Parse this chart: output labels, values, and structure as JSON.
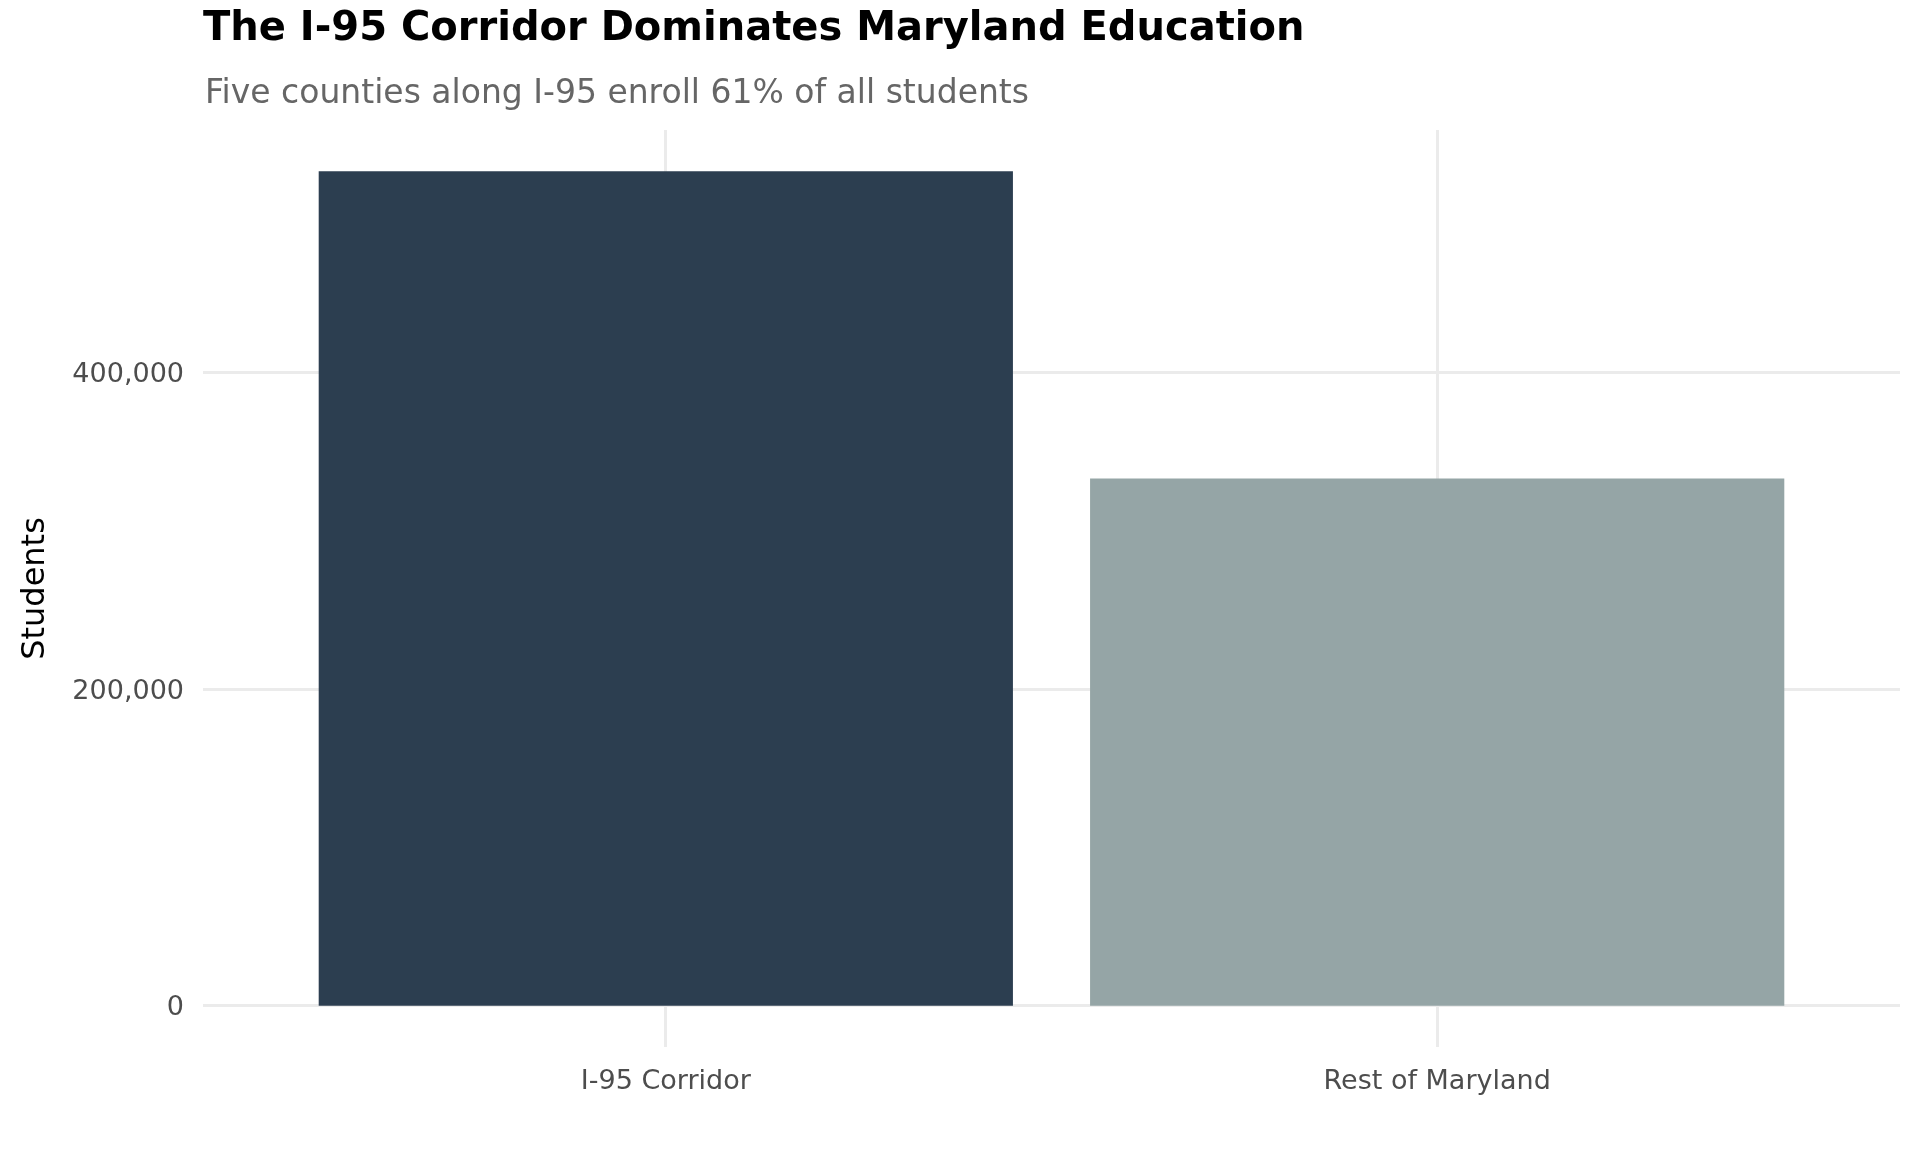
{
  "chart_data": {
    "type": "bar",
    "title": "The I-95 Corridor Dominates Maryland Education",
    "subtitle": "Five counties along I-95 enroll 61% of all students",
    "ylabel": "Students",
    "categories": [
      "I-95 Corridor",
      "Rest of Maryland"
    ],
    "values": [
      527000,
      333000
    ],
    "colors": [
      "#2c3e50",
      "#95a5a6"
    ],
    "ylim": [
      -26000,
      553000
    ],
    "yticks": [
      0,
      {
        "value": 200000,
        "label": "200,000"
      },
      {
        "value": 400000,
        "label": "400,000"
      }
    ],
    "grid": true
  }
}
